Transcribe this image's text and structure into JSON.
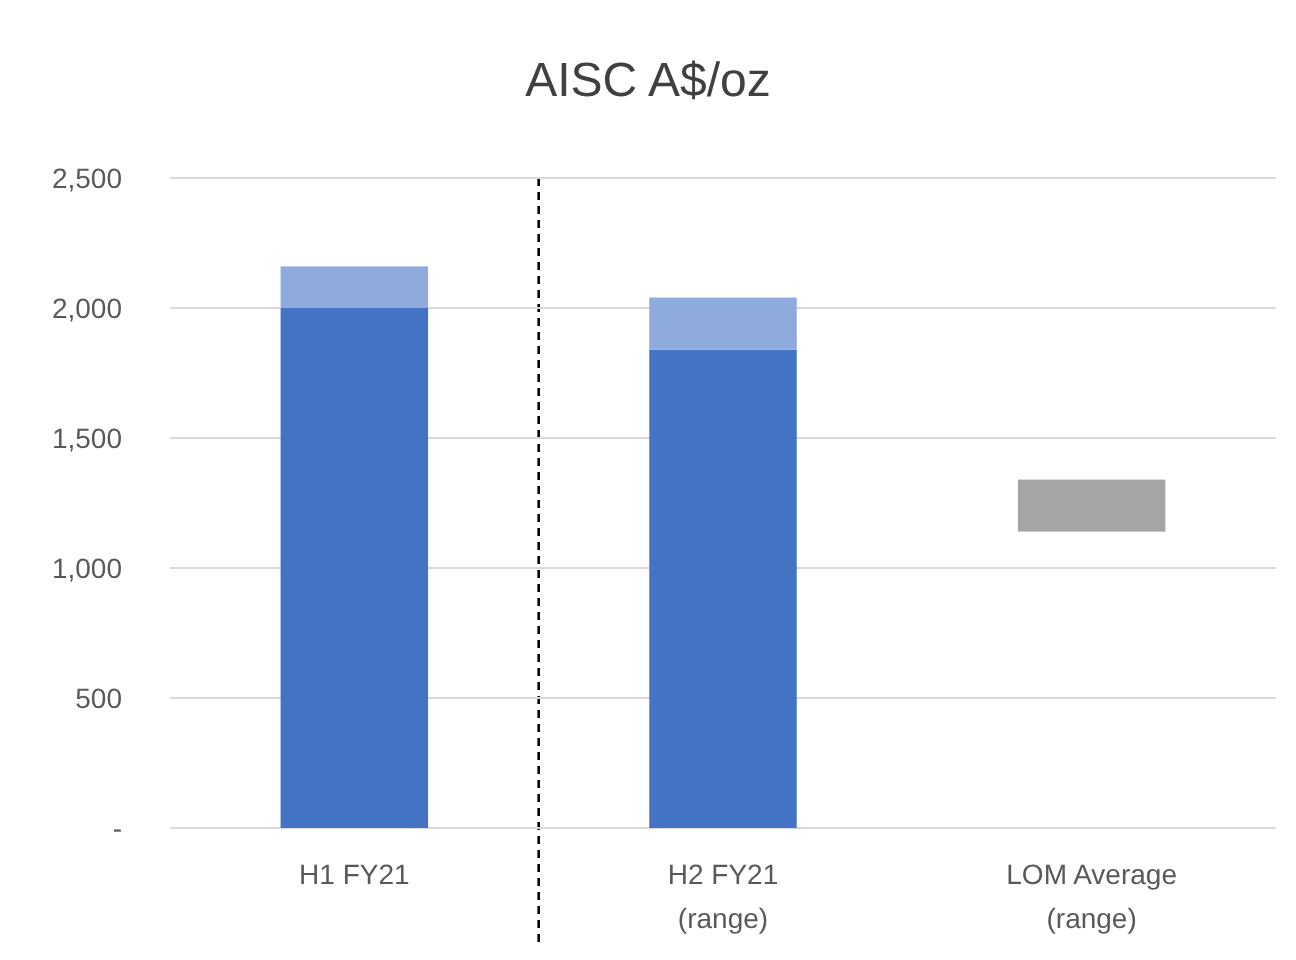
{
  "chart_data": {
    "type": "bar",
    "title": "AISC A$/oz",
    "categories": [
      "H1 FY21",
      "H2 FY21\n(range)",
      "LOM Average\n(range)"
    ],
    "stacked": true,
    "series": [
      {
        "colors": [
          "#4472c4",
          "#4472c4",
          "#a5a5a5"
        ],
        "base": [
          0,
          0,
          1140
        ],
        "values": [
          2000,
          1840,
          200
        ]
      },
      {
        "color": "#8faadc",
        "values": [
          160,
          200,
          null
        ]
      }
    ],
    "ylim": [
      0,
      2500
    ],
    "yticks": [
      {
        "value": 0,
        "label": "-"
      },
      {
        "value": 500,
        "label": "500"
      },
      {
        "value": 1000,
        "label": "1,000"
      },
      {
        "value": 1500,
        "label": "1,500"
      },
      {
        "value": 2000,
        "label": "2,000"
      },
      {
        "value": 2500,
        "label": "2,500"
      }
    ],
    "grid": "y"
  }
}
